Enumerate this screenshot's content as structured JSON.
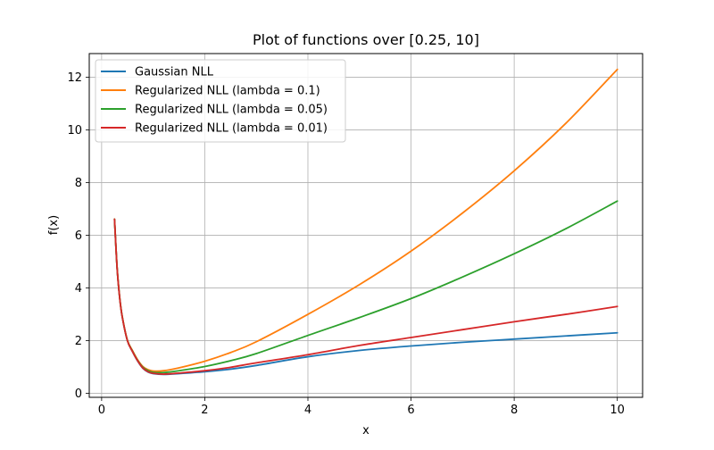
{
  "chart_data": {
    "type": "line",
    "title": "Plot of functions over [0.25, 10]",
    "xlabel": "x",
    "ylabel": "f(x)",
    "xlim": [
      -0.24,
      10.49
    ],
    "ylim": [
      -0.15,
      12.9
    ],
    "grid": true,
    "legend_position": "top-left",
    "x_ticks": [
      0,
      2,
      4,
      6,
      8,
      10
    ],
    "y_ticks": [
      0,
      2,
      4,
      6,
      8,
      10,
      12
    ],
    "x_tick_labels": [
      "0",
      "2",
      "4",
      "6",
      "8",
      "10"
    ],
    "y_tick_labels": [
      "0",
      "2",
      "4",
      "6",
      "8",
      "10",
      "12"
    ],
    "series": [
      {
        "name": "Gaussian NLL",
        "color": "#1f77b4",
        "x": [
          0.25,
          0.3,
          0.35,
          0.4,
          0.5,
          0.6,
          0.7,
          0.8,
          0.9,
          1.0,
          1.2,
          1.5,
          2.0,
          2.5,
          3.0,
          4.0,
          5.0,
          6.0,
          7.0,
          8.0,
          9.0,
          10.0
        ],
        "values": [
          6.61,
          4.76,
          3.63,
          2.9,
          2.0,
          1.58,
          1.22,
          0.95,
          0.81,
          0.75,
          0.72,
          0.75,
          0.82,
          0.92,
          1.06,
          1.39,
          1.63,
          1.8,
          1.94,
          2.06,
          2.18,
          2.3
        ]
      },
      {
        "name": "Regularized NLL (lambda = 0.1)",
        "color": "#ff7f0e",
        "x": [
          0.25,
          0.3,
          0.35,
          0.4,
          0.5,
          0.6,
          0.7,
          0.8,
          0.9,
          1.0,
          1.2,
          1.5,
          2.0,
          2.5,
          3.0,
          4.0,
          5.0,
          6.0,
          7.0,
          8.0,
          9.0,
          10.0
        ],
        "values": [
          6.62,
          4.77,
          3.64,
          2.92,
          2.02,
          1.62,
          1.27,
          1.02,
          0.9,
          0.85,
          0.86,
          0.97,
          1.22,
          1.55,
          1.96,
          3.0,
          4.13,
          5.4,
          6.85,
          8.45,
          10.25,
          12.3
        ]
      },
      {
        "name": "Regularized NLL (lambda = 0.05)",
        "color": "#2ca02c",
        "x": [
          0.25,
          0.3,
          0.35,
          0.4,
          0.5,
          0.6,
          0.7,
          0.8,
          0.9,
          1.0,
          1.2,
          1.5,
          2.0,
          2.5,
          3.0,
          4.0,
          5.0,
          6.0,
          7.0,
          8.0,
          9.0,
          10.0
        ],
        "values": [
          6.61,
          4.77,
          3.64,
          2.91,
          2.01,
          1.6,
          1.25,
          0.99,
          0.86,
          0.8,
          0.79,
          0.86,
          1.02,
          1.24,
          1.51,
          2.2,
          2.88,
          3.6,
          4.42,
          5.3,
          6.25,
          7.3
        ]
      },
      {
        "name": "Regularized NLL (lambda = 0.01)",
        "color": "#d62728",
        "x": [
          0.25,
          0.3,
          0.35,
          0.4,
          0.5,
          0.6,
          0.7,
          0.8,
          0.9,
          1.0,
          1.2,
          1.5,
          2.0,
          2.5,
          3.0,
          4.0,
          5.0,
          6.0,
          7.0,
          8.0,
          9.0,
          10.0
        ],
        "values": [
          6.61,
          4.76,
          3.63,
          2.9,
          2.0,
          1.58,
          1.23,
          0.96,
          0.82,
          0.76,
          0.73,
          0.77,
          0.86,
          0.99,
          1.16,
          1.47,
          1.82,
          2.12,
          2.42,
          2.72,
          3.0,
          3.3
        ]
      }
    ]
  }
}
